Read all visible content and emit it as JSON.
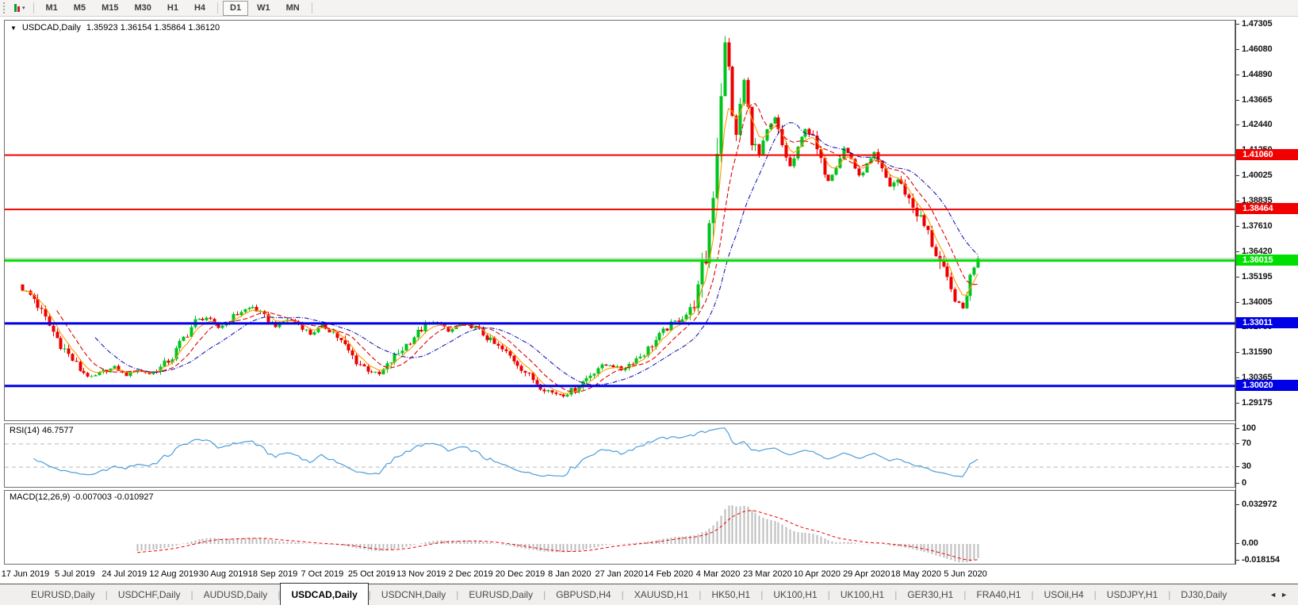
{
  "toolbar": {
    "chart_type_icon": "candlestick-chart-icon",
    "dropdown_glyph": "▾",
    "timeframes": [
      {
        "label": "M1",
        "active": false
      },
      {
        "label": "M5",
        "active": false
      },
      {
        "label": "M15",
        "active": false
      },
      {
        "label": "M30",
        "active": false
      },
      {
        "label": "H1",
        "active": false
      },
      {
        "label": "H4",
        "active": false
      },
      {
        "label": "D1",
        "active": true
      },
      {
        "label": "W1",
        "active": false
      },
      {
        "label": "MN",
        "active": false
      }
    ]
  },
  "chart_header": {
    "dropdown_icon": "▼",
    "symbol": "USDCAD,Daily",
    "ohlc": "1.35923 1.36154 1.35864 1.36120"
  },
  "price_axis": {
    "ticks": [
      "1.47305",
      "1.46080",
      "1.44890",
      "1.43665",
      "1.42440",
      "1.41250",
      "1.40025",
      "1.38835",
      "1.37610",
      "1.36420",
      "1.35195",
      "1.34005",
      "1.32780",
      "1.31590",
      "1.30365",
      "1.29175"
    ]
  },
  "levels": [
    {
      "label": "1.41060",
      "value": 1.4106,
      "color": "#f20000",
      "thickness": 2
    },
    {
      "label": "1.38464",
      "value": 1.38464,
      "color": "#f20000",
      "thickness": 2
    },
    {
      "label": "1.36015",
      "value": 1.36015,
      "color": "#00e000",
      "thickness": 3
    },
    {
      "label": "1.33011",
      "value": 1.33011,
      "color": "#0000e6",
      "thickness": 3
    },
    {
      "label": "1.30020",
      "value": 1.3002,
      "color": "#0000e6",
      "thickness": 3
    }
  ],
  "current_price": {
    "value": 1.3612,
    "color": "#b8b8b8"
  },
  "rsi_panel": {
    "label": "RSI(14) 46.7577",
    "period": 14,
    "line_color": "#4c9edc",
    "ticks": [
      {
        "label": "100",
        "value": 100,
        "dashed": false
      },
      {
        "label": "70",
        "value": 70,
        "dashed": true
      },
      {
        "label": "30",
        "value": 30,
        "dashed": true
      },
      {
        "label": "0",
        "value": 0,
        "dashed": false
      }
    ]
  },
  "macd_panel": {
    "label": "MACD(12,26,9) -0.007003 -0.010927",
    "fast": 12,
    "slow": 26,
    "signal": 9,
    "histogram_color": "#bdbdbd",
    "signal_color": "#f20000",
    "ticks": [
      {
        "label": "0.032972",
        "value": 0.032972
      },
      {
        "label": "0.00",
        "value": 0
      },
      {
        "label": "-0.018154",
        "value": -0.018154
      }
    ]
  },
  "date_axis": [
    "17 Jun 2019",
    "5 Jul 2019",
    "24 Jul 2019",
    "12 Aug 2019",
    "30 Aug 2019",
    "18 Sep 2019",
    "7 Oct 2019",
    "25 Oct 2019",
    "13 Nov 2019",
    "2 Dec 2019",
    "20 Dec 2019",
    "8 Jan 2020",
    "27 Jan 2020",
    "14 Feb 2020",
    "4 Mar 2020",
    "23 Mar 2020",
    "10 Apr 2020",
    "29 Apr 2020",
    "18 May 2020",
    "5 Jun 2020"
  ],
  "tabs": [
    {
      "label": "EURUSD,Daily",
      "active": false
    },
    {
      "label": "USDCHF,Daily",
      "active": false
    },
    {
      "label": "AUDUSD,Daily",
      "active": false
    },
    {
      "label": "USDCAD,Daily",
      "active": true
    },
    {
      "label": "USDCNH,Daily",
      "active": false
    },
    {
      "label": "EURUSD,Daily",
      "active": false
    },
    {
      "label": "GBPUSD,H4",
      "active": false
    },
    {
      "label": "XAUUSD,H1",
      "active": false
    },
    {
      "label": "HK50,H1",
      "active": false
    },
    {
      "label": "UK100,H1",
      "active": false
    },
    {
      "label": "UK100,H1",
      "active": false
    },
    {
      "label": "GER30,H1",
      "active": false
    },
    {
      "label": "FRA40,H1",
      "active": false
    },
    {
      "label": "USOil,H4",
      "active": false
    },
    {
      "label": "USDJPY,H1",
      "active": false
    },
    {
      "label": "DJ30,Daily",
      "active": false
    }
  ],
  "tab_scroll": {
    "left_icon": "◄",
    "right_icon": "►"
  },
  "chart_data": {
    "type": "candlestick",
    "symbol": "USDCAD",
    "timeframe": "Daily",
    "ohlc_display": {
      "open": "1.35923",
      "high": "1.36154",
      "low": "1.35864",
      "close": "1.36120"
    },
    "price_range": [
      1.29175,
      1.47305
    ],
    "candle_count": 250,
    "up_color": "#00c41e",
    "down_color": "#ee0000",
    "ma_lines": [
      {
        "name": "fast",
        "type": "ema",
        "period": 5,
        "color": "#ff9900",
        "style": "solid"
      },
      {
        "name": "medium",
        "type": "sma",
        "period": 10,
        "color": "#e00000",
        "style": "dash"
      },
      {
        "name": "slow",
        "type": "sma",
        "period": 20,
        "color": "#1a1ab4",
        "style": "dashdot"
      }
    ],
    "close_keyframes": [
      [
        0,
        1.3465
      ],
      [
        3,
        1.342
      ],
      [
        6,
        1.332
      ],
      [
        9,
        1.323
      ],
      [
        12,
        1.315
      ],
      [
        15,
        1.308
      ],
      [
        18,
        1.304
      ],
      [
        21,
        1.307
      ],
      [
        24,
        1.309
      ],
      [
        27,
        1.3055
      ],
      [
        30,
        1.308
      ],
      [
        33,
        1.306
      ],
      [
        36,
        1.309
      ],
      [
        39,
        1.314
      ],
      [
        42,
        1.323
      ],
      [
        45,
        1.331
      ],
      [
        48,
        1.333
      ],
      [
        51,
        1.328
      ],
      [
        54,
        1.332
      ],
      [
        57,
        1.336
      ],
      [
        60,
        1.338
      ],
      [
        63,
        1.333
      ],
      [
        66,
        1.329
      ],
      [
        69,
        1.332
      ],
      [
        72,
        1.33
      ],
      [
        75,
        1.325
      ],
      [
        78,
        1.329
      ],
      [
        81,
        1.326
      ],
      [
        84,
        1.319
      ],
      [
        87,
        1.312
      ],
      [
        90,
        1.308
      ],
      [
        93,
        1.3055
      ],
      [
        96,
        1.312
      ],
      [
        99,
        1.318
      ],
      [
        102,
        1.324
      ],
      [
        105,
        1.329
      ],
      [
        108,
        1.331
      ],
      [
        111,
        1.326
      ],
      [
        114,
        1.33
      ],
      [
        117,
        1.329
      ],
      [
        120,
        1.325
      ],
      [
        123,
        1.32
      ],
      [
        126,
        1.316
      ],
      [
        129,
        1.311
      ],
      [
        132,
        1.305
      ],
      [
        135,
        1.3
      ],
      [
        138,
        1.297
      ],
      [
        141,
        1.296
      ],
      [
        144,
        1.299
      ],
      [
        147,
        1.304
      ],
      [
        150,
        1.309
      ],
      [
        153,
        1.3105
      ],
      [
        156,
        1.308
      ],
      [
        159,
        1.312
      ],
      [
        162,
        1.316
      ],
      [
        165,
        1.322
      ],
      [
        168,
        1.328
      ],
      [
        171,
        1.332
      ],
      [
        174,
        1.336
      ],
      [
        176,
        1.345
      ],
      [
        178,
        1.362
      ],
      [
        180,
        1.395
      ],
      [
        181,
        1.415
      ],
      [
        182,
        1.442
      ],
      [
        183,
        1.463
      ],
      [
        184,
        1.452
      ],
      [
        185,
        1.43
      ],
      [
        186,
        1.418
      ],
      [
        187,
        1.435
      ],
      [
        188,
        1.446
      ],
      [
        189,
        1.433
      ],
      [
        190,
        1.418
      ],
      [
        192,
        1.41
      ],
      [
        194,
        1.422
      ],
      [
        196,
        1.428
      ],
      [
        198,
        1.415
      ],
      [
        200,
        1.405
      ],
      [
        202,
        1.413
      ],
      [
        204,
        1.424
      ],
      [
        206,
        1.418
      ],
      [
        208,
        1.407
      ],
      [
        210,
        1.399
      ],
      [
        212,
        1.406
      ],
      [
        214,
        1.414
      ],
      [
        216,
        1.409
      ],
      [
        218,
        1.4
      ],
      [
        220,
        1.406
      ],
      [
        222,
        1.411
      ],
      [
        224,
        1.403
      ],
      [
        226,
        1.396
      ],
      [
        228,
        1.399
      ],
      [
        230,
        1.393
      ],
      [
        232,
        1.386
      ],
      [
        234,
        1.38
      ],
      [
        236,
        1.373
      ],
      [
        238,
        1.364
      ],
      [
        240,
        1.354
      ],
      [
        242,
        1.345
      ],
      [
        244,
        1.339
      ],
      [
        245,
        1.337
      ],
      [
        246,
        1.345
      ],
      [
        247,
        1.352
      ],
      [
        248,
        1.357
      ],
      [
        249,
        1.3612
      ]
    ]
  }
}
